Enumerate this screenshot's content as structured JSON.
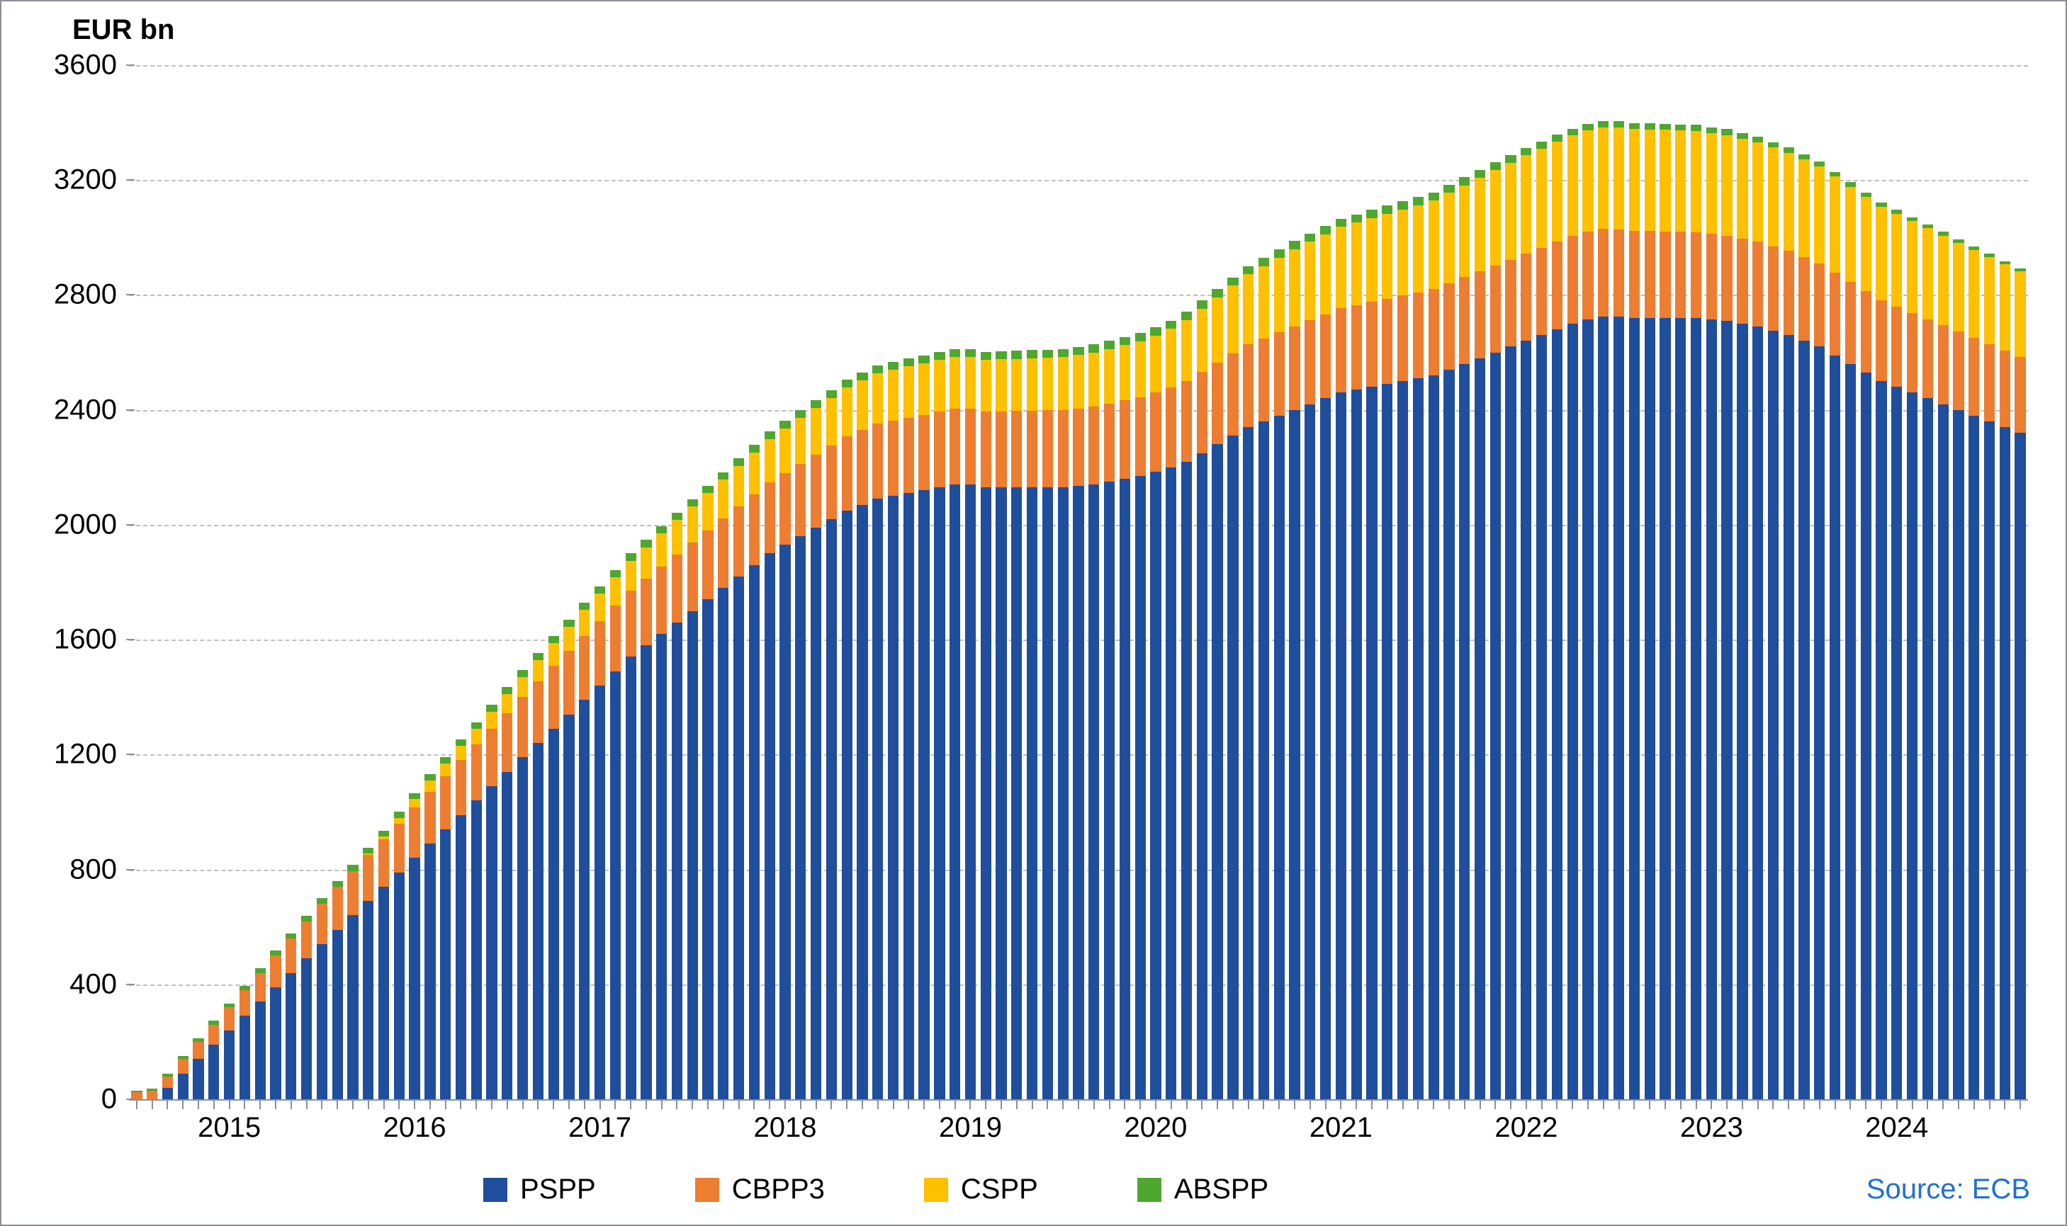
{
  "chart": {
    "type": "stacked-bar",
    "y_title": "EUR bn",
    "source_text": "Source: ECB",
    "source_color": "#1f6fd6",
    "background_color": "#ffffff",
    "border_color": "#8a8f99",
    "grid_color": "#bfbfbf",
    "axis_color": "#8a8f99",
    "tick_label_fontsize": 40,
    "title_fontsize": 40,
    "title_fontweight": 700,
    "ylim": [
      0,
      3600
    ],
    "y_ticks": [
      0,
      400,
      800,
      1200,
      1600,
      2000,
      2400,
      2800,
      3200,
      3600
    ],
    "x_year_labels": [
      {
        "label": "2015",
        "index": 6
      },
      {
        "label": "2016",
        "index": 18
      },
      {
        "label": "2017",
        "index": 30
      },
      {
        "label": "2018",
        "index": 42
      },
      {
        "label": "2019",
        "index": 54
      },
      {
        "label": "2020",
        "index": 66
      },
      {
        "label": "2021",
        "index": 78
      },
      {
        "label": "2022",
        "index": 90
      },
      {
        "label": "2023",
        "index": 102
      },
      {
        "label": "2024",
        "index": 114
      }
    ],
    "series": [
      {
        "key": "pspp",
        "label": "PSPP",
        "color": "#1f4e9c"
      },
      {
        "key": "cbpp3",
        "label": "CBPP3",
        "color": "#ed7d31"
      },
      {
        "key": "cspp",
        "label": "CSPP",
        "color": "#ffc000"
      },
      {
        "key": "abspp",
        "label": "ABSPP",
        "color": "#4ea72e"
      }
    ],
    "bar_width_ratio": 0.7,
    "data": [
      {
        "pspp": 0,
        "cbpp3": 25,
        "cspp": 0,
        "abspp": 5
      },
      {
        "pspp": 0,
        "cbpp3": 30,
        "cspp": 0,
        "abspp": 6
      },
      {
        "pspp": 40,
        "cbpp3": 40,
        "cspp": 0,
        "abspp": 8
      },
      {
        "pspp": 90,
        "cbpp3": 50,
        "cspp": 0,
        "abspp": 10
      },
      {
        "pspp": 140,
        "cbpp3": 60,
        "cspp": 0,
        "abspp": 12
      },
      {
        "pspp": 190,
        "cbpp3": 70,
        "cspp": 0,
        "abspp": 13
      },
      {
        "pspp": 240,
        "cbpp3": 80,
        "cspp": 0,
        "abspp": 14
      },
      {
        "pspp": 290,
        "cbpp3": 90,
        "cspp": 0,
        "abspp": 15
      },
      {
        "pspp": 340,
        "cbpp3": 100,
        "cspp": 0,
        "abspp": 16
      },
      {
        "pspp": 390,
        "cbpp3": 110,
        "cspp": 0,
        "abspp": 17
      },
      {
        "pspp": 440,
        "cbpp3": 120,
        "cspp": 0,
        "abspp": 18
      },
      {
        "pspp": 490,
        "cbpp3": 130,
        "cspp": 0,
        "abspp": 19
      },
      {
        "pspp": 540,
        "cbpp3": 140,
        "cspp": 0,
        "abspp": 20
      },
      {
        "pspp": 590,
        "cbpp3": 150,
        "cspp": 0,
        "abspp": 20
      },
      {
        "pspp": 640,
        "cbpp3": 155,
        "cspp": 0,
        "abspp": 20
      },
      {
        "pspp": 690,
        "cbpp3": 160,
        "cspp": 5,
        "abspp": 20
      },
      {
        "pspp": 740,
        "cbpp3": 165,
        "cspp": 10,
        "abspp": 20
      },
      {
        "pspp": 790,
        "cbpp3": 170,
        "cspp": 20,
        "abspp": 20
      },
      {
        "pspp": 840,
        "cbpp3": 175,
        "cspp": 30,
        "abspp": 21
      },
      {
        "pspp": 890,
        "cbpp3": 180,
        "cspp": 40,
        "abspp": 21
      },
      {
        "pspp": 940,
        "cbpp3": 185,
        "cspp": 45,
        "abspp": 22
      },
      {
        "pspp": 990,
        "cbpp3": 190,
        "cspp": 50,
        "abspp": 22
      },
      {
        "pspp": 1040,
        "cbpp3": 195,
        "cspp": 55,
        "abspp": 23
      },
      {
        "pspp": 1090,
        "cbpp3": 200,
        "cspp": 60,
        "abspp": 23
      },
      {
        "pspp": 1140,
        "cbpp3": 205,
        "cspp": 65,
        "abspp": 24
      },
      {
        "pspp": 1190,
        "cbpp3": 210,
        "cspp": 70,
        "abspp": 24
      },
      {
        "pspp": 1240,
        "cbpp3": 215,
        "cspp": 75,
        "abspp": 24
      },
      {
        "pspp": 1290,
        "cbpp3": 218,
        "cspp": 80,
        "abspp": 24
      },
      {
        "pspp": 1340,
        "cbpp3": 220,
        "cspp": 85,
        "abspp": 25
      },
      {
        "pspp": 1390,
        "cbpp3": 223,
        "cspp": 90,
        "abspp": 25
      },
      {
        "pspp": 1440,
        "cbpp3": 225,
        "cspp": 95,
        "abspp": 25
      },
      {
        "pspp": 1490,
        "cbpp3": 228,
        "cspp": 100,
        "abspp": 25
      },
      {
        "pspp": 1540,
        "cbpp3": 230,
        "cspp": 105,
        "abspp": 25
      },
      {
        "pspp": 1580,
        "cbpp3": 232,
        "cspp": 110,
        "abspp": 26
      },
      {
        "pspp": 1620,
        "cbpp3": 234,
        "cspp": 115,
        "abspp": 26
      },
      {
        "pspp": 1660,
        "cbpp3": 236,
        "cspp": 120,
        "abspp": 26
      },
      {
        "pspp": 1700,
        "cbpp3": 238,
        "cspp": 125,
        "abspp": 26
      },
      {
        "pspp": 1740,
        "cbpp3": 240,
        "cspp": 130,
        "abspp": 26
      },
      {
        "pspp": 1780,
        "cbpp3": 242,
        "cspp": 135,
        "abspp": 26
      },
      {
        "pspp": 1820,
        "cbpp3": 244,
        "cspp": 140,
        "abspp": 27
      },
      {
        "pspp": 1860,
        "cbpp3": 246,
        "cspp": 145,
        "abspp": 27
      },
      {
        "pspp": 1900,
        "cbpp3": 248,
        "cspp": 150,
        "abspp": 27
      },
      {
        "pspp": 1930,
        "cbpp3": 250,
        "cspp": 155,
        "abspp": 27
      },
      {
        "pspp": 1960,
        "cbpp3": 252,
        "cspp": 160,
        "abspp": 27
      },
      {
        "pspp": 1990,
        "cbpp3": 254,
        "cspp": 163,
        "abspp": 27
      },
      {
        "pspp": 2020,
        "cbpp3": 256,
        "cspp": 166,
        "abspp": 27
      },
      {
        "pspp": 2050,
        "cbpp3": 258,
        "cspp": 169,
        "abspp": 28
      },
      {
        "pspp": 2070,
        "cbpp3": 260,
        "cspp": 172,
        "abspp": 28
      },
      {
        "pspp": 2090,
        "cbpp3": 262,
        "cspp": 175,
        "abspp": 28
      },
      {
        "pspp": 2100,
        "cbpp3": 262,
        "cspp": 177,
        "abspp": 28
      },
      {
        "pspp": 2110,
        "cbpp3": 263,
        "cspp": 178,
        "abspp": 28
      },
      {
        "pspp": 2120,
        "cbpp3": 263,
        "cspp": 179,
        "abspp": 28
      },
      {
        "pspp": 2130,
        "cbpp3": 264,
        "cspp": 180,
        "abspp": 28
      },
      {
        "pspp": 2140,
        "cbpp3": 264,
        "cspp": 180,
        "abspp": 28
      },
      {
        "pspp": 2140,
        "cbpp3": 264,
        "cspp": 180,
        "abspp": 28
      },
      {
        "pspp": 2130,
        "cbpp3": 264,
        "cspp": 180,
        "abspp": 28
      },
      {
        "pspp": 2130,
        "cbpp3": 265,
        "cspp": 181,
        "abspp": 28
      },
      {
        "pspp": 2130,
        "cbpp3": 266,
        "cspp": 182,
        "abspp": 28
      },
      {
        "pspp": 2130,
        "cbpp3": 267,
        "cspp": 183,
        "abspp": 28
      },
      {
        "pspp": 2130,
        "cbpp3": 268,
        "cspp": 184,
        "abspp": 28
      },
      {
        "pspp": 2130,
        "cbpp3": 269,
        "cspp": 185,
        "abspp": 28
      },
      {
        "pspp": 2135,
        "cbpp3": 270,
        "cspp": 186,
        "abspp": 28
      },
      {
        "pspp": 2140,
        "cbpp3": 271,
        "cspp": 188,
        "abspp": 29
      },
      {
        "pspp": 2150,
        "cbpp3": 272,
        "cspp": 190,
        "abspp": 29
      },
      {
        "pspp": 2160,
        "cbpp3": 273,
        "cspp": 192,
        "abspp": 29
      },
      {
        "pspp": 2170,
        "cbpp3": 274,
        "cspp": 194,
        "abspp": 29
      },
      {
        "pspp": 2185,
        "cbpp3": 276,
        "cspp": 198,
        "abspp": 29
      },
      {
        "pspp": 2200,
        "cbpp3": 278,
        "cspp": 204,
        "abspp": 29
      },
      {
        "pspp": 2220,
        "cbpp3": 280,
        "cspp": 212,
        "abspp": 29
      },
      {
        "pspp": 2250,
        "cbpp3": 282,
        "cspp": 220,
        "abspp": 29
      },
      {
        "pspp": 2280,
        "cbpp3": 284,
        "cspp": 228,
        "abspp": 29
      },
      {
        "pspp": 2310,
        "cbpp3": 286,
        "cspp": 236,
        "abspp": 29
      },
      {
        "pspp": 2340,
        "cbpp3": 288,
        "cspp": 244,
        "abspp": 29
      },
      {
        "pspp": 2360,
        "cbpp3": 289,
        "cspp": 252,
        "abspp": 29
      },
      {
        "pspp": 2380,
        "cbpp3": 290,
        "cspp": 260,
        "abspp": 29
      },
      {
        "pspp": 2400,
        "cbpp3": 291,
        "cspp": 268,
        "abspp": 29
      },
      {
        "pspp": 2420,
        "cbpp3": 292,
        "cspp": 273,
        "abspp": 29
      },
      {
        "pspp": 2440,
        "cbpp3": 293,
        "cspp": 278,
        "abspp": 29
      },
      {
        "pspp": 2460,
        "cbpp3": 294,
        "cspp": 283,
        "abspp": 29
      },
      {
        "pspp": 2470,
        "cbpp3": 295,
        "cspp": 288,
        "abspp": 28
      },
      {
        "pspp": 2480,
        "cbpp3": 296,
        "cspp": 292,
        "abspp": 28
      },
      {
        "pspp": 2490,
        "cbpp3": 297,
        "cspp": 296,
        "abspp": 28
      },
      {
        "pspp": 2500,
        "cbpp3": 298,
        "cspp": 300,
        "abspp": 28
      },
      {
        "pspp": 2510,
        "cbpp3": 299,
        "cspp": 304,
        "abspp": 28
      },
      {
        "pspp": 2520,
        "cbpp3": 300,
        "cspp": 308,
        "abspp": 28
      },
      {
        "pspp": 2540,
        "cbpp3": 301,
        "cspp": 314,
        "abspp": 28
      },
      {
        "pspp": 2560,
        "cbpp3": 302,
        "cspp": 320,
        "abspp": 28
      },
      {
        "pspp": 2580,
        "cbpp3": 302,
        "cspp": 326,
        "abspp": 27
      },
      {
        "pspp": 2600,
        "cbpp3": 303,
        "cspp": 332,
        "abspp": 27
      },
      {
        "pspp": 2620,
        "cbpp3": 303,
        "cspp": 337,
        "abspp": 27
      },
      {
        "pspp": 2640,
        "cbpp3": 304,
        "cspp": 342,
        "abspp": 26
      },
      {
        "pspp": 2660,
        "cbpp3": 304,
        "cspp": 345,
        "abspp": 26
      },
      {
        "pspp": 2680,
        "cbpp3": 305,
        "cspp": 348,
        "abspp": 25
      },
      {
        "pspp": 2700,
        "cbpp3": 305,
        "cspp": 350,
        "abspp": 24
      },
      {
        "pspp": 2715,
        "cbpp3": 305,
        "cspp": 352,
        "abspp": 24
      },
      {
        "pspp": 2725,
        "cbpp3": 305,
        "cspp": 353,
        "abspp": 23
      },
      {
        "pspp": 2725,
        "cbpp3": 304,
        "cspp": 354,
        "abspp": 23
      },
      {
        "pspp": 2720,
        "cbpp3": 303,
        "cspp": 354,
        "abspp": 22
      },
      {
        "pspp": 2720,
        "cbpp3": 302,
        "cspp": 354,
        "abspp": 22
      },
      {
        "pspp": 2720,
        "cbpp3": 301,
        "cspp": 354,
        "abspp": 21
      },
      {
        "pspp": 2720,
        "cbpp3": 300,
        "cspp": 353,
        "abspp": 21
      },
      {
        "pspp": 2720,
        "cbpp3": 299,
        "cspp": 352,
        "abspp": 21
      },
      {
        "pspp": 2715,
        "cbpp3": 298,
        "cspp": 351,
        "abspp": 20
      },
      {
        "pspp": 2710,
        "cbpp3": 297,
        "cspp": 350,
        "abspp": 20
      },
      {
        "pspp": 2700,
        "cbpp3": 296,
        "cspp": 348,
        "abspp": 19
      },
      {
        "pspp": 2690,
        "cbpp3": 295,
        "cspp": 346,
        "abspp": 19
      },
      {
        "pspp": 2675,
        "cbpp3": 294,
        "cspp": 344,
        "abspp": 18
      },
      {
        "pspp": 2660,
        "cbpp3": 293,
        "cspp": 342,
        "abspp": 18
      },
      {
        "pspp": 2640,
        "cbpp3": 292,
        "cspp": 340,
        "abspp": 17
      },
      {
        "pspp": 2620,
        "cbpp3": 290,
        "cspp": 337,
        "abspp": 17
      },
      {
        "pspp": 2590,
        "cbpp3": 288,
        "cspp": 334,
        "abspp": 16
      },
      {
        "pspp": 2560,
        "cbpp3": 286,
        "cspp": 331,
        "abspp": 16
      },
      {
        "pspp": 2530,
        "cbpp3": 284,
        "cspp": 328,
        "abspp": 15
      },
      {
        "pspp": 2500,
        "cbpp3": 282,
        "cspp": 325,
        "abspp": 15
      },
      {
        "pspp": 2480,
        "cbpp3": 280,
        "cspp": 322,
        "abspp": 14
      },
      {
        "pspp": 2460,
        "cbpp3": 278,
        "cspp": 319,
        "abspp": 14
      },
      {
        "pspp": 2440,
        "cbpp3": 276,
        "cspp": 316,
        "abspp": 13
      },
      {
        "pspp": 2420,
        "cbpp3": 274,
        "cspp": 313,
        "abspp": 13
      },
      {
        "pspp": 2400,
        "cbpp3": 272,
        "cspp": 310,
        "abspp": 12
      },
      {
        "pspp": 2380,
        "cbpp3": 270,
        "cspp": 307,
        "abspp": 12
      },
      {
        "pspp": 2360,
        "cbpp3": 268,
        "cspp": 304,
        "abspp": 12
      },
      {
        "pspp": 2340,
        "cbpp3": 266,
        "cspp": 301,
        "abspp": 11
      },
      {
        "pspp": 2320,
        "cbpp3": 264,
        "cspp": 298,
        "abspp": 11
      }
    ]
  }
}
